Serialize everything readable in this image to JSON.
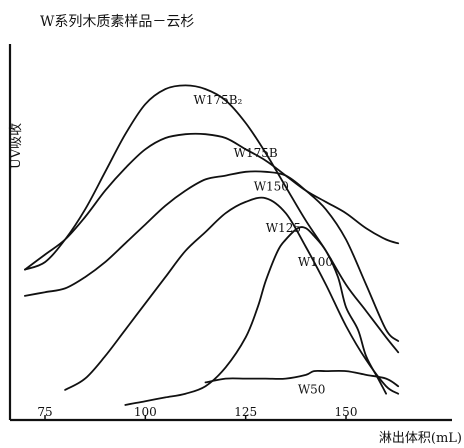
{
  "chart_data": {
    "type": "line",
    "title": "W系列木质素样品－云杉",
    "xlabel": "淋出体积(mL)",
    "ylabel": "UV吸收",
    "xlim": [
      70,
      165
    ],
    "ylim": [
      0,
      1
    ],
    "x_ticks": [
      75,
      100,
      125,
      150
    ],
    "grid": false,
    "series": [
      {
        "name": "W175B₂",
        "label": "W175B₂",
        "points": [
          [
            70,
            0.4
          ],
          [
            75,
            0.42
          ],
          [
            80,
            0.48
          ],
          [
            85,
            0.56
          ],
          [
            90,
            0.66
          ],
          [
            95,
            0.76
          ],
          [
            100,
            0.84
          ],
          [
            105,
            0.88
          ],
          [
            110,
            0.89
          ],
          [
            115,
            0.88
          ],
          [
            120,
            0.85
          ],
          [
            125,
            0.79
          ],
          [
            130,
            0.71
          ],
          [
            135,
            0.62
          ],
          [
            140,
            0.53
          ],
          [
            145,
            0.45
          ],
          [
            150,
            0.36
          ],
          [
            155,
            0.29
          ],
          [
            160,
            0.22
          ],
          [
            163,
            0.18
          ]
        ]
      },
      {
        "name": "W175B",
        "label": "W175B",
        "points": [
          [
            70,
            0.4
          ],
          [
            75,
            0.44
          ],
          [
            80,
            0.48
          ],
          [
            85,
            0.54
          ],
          [
            90,
            0.61
          ],
          [
            95,
            0.67
          ],
          [
            100,
            0.72
          ],
          [
            105,
            0.75
          ],
          [
            110,
            0.76
          ],
          [
            115,
            0.76
          ],
          [
            120,
            0.75
          ],
          [
            125,
            0.72
          ],
          [
            130,
            0.69
          ],
          [
            135,
            0.65
          ],
          [
            140,
            0.61
          ],
          [
            145,
            0.58
          ],
          [
            150,
            0.55
          ],
          [
            155,
            0.51
          ],
          [
            160,
            0.48
          ],
          [
            163,
            0.47
          ]
        ]
      },
      {
        "name": "W150",
        "label": "W150",
        "points": [
          [
            70,
            0.33
          ],
          [
            75,
            0.34
          ],
          [
            80,
            0.35
          ],
          [
            85,
            0.38
          ],
          [
            90,
            0.42
          ],
          [
            95,
            0.47
          ],
          [
            100,
            0.52
          ],
          [
            105,
            0.57
          ],
          [
            110,
            0.61
          ],
          [
            115,
            0.64
          ],
          [
            120,
            0.65
          ],
          [
            125,
            0.66
          ],
          [
            130,
            0.66
          ],
          [
            135,
            0.65
          ],
          [
            140,
            0.61
          ],
          [
            145,
            0.56
          ],
          [
            150,
            0.48
          ],
          [
            155,
            0.36
          ],
          [
            160,
            0.24
          ],
          [
            163,
            0.21
          ]
        ]
      },
      {
        "name": "W125",
        "label": "W125",
        "points": [
          [
            80,
            0.08
          ],
          [
            85,
            0.11
          ],
          [
            90,
            0.17
          ],
          [
            95,
            0.24
          ],
          [
            100,
            0.31
          ],
          [
            105,
            0.38
          ],
          [
            110,
            0.45
          ],
          [
            115,
            0.5
          ],
          [
            120,
            0.55
          ],
          [
            125,
            0.58
          ],
          [
            130,
            0.59
          ],
          [
            135,
            0.55
          ],
          [
            140,
            0.46
          ],
          [
            145,
            0.36
          ],
          [
            150,
            0.25
          ],
          [
            155,
            0.16
          ],
          [
            160,
            0.09
          ],
          [
            163,
            0.07
          ]
        ]
      },
      {
        "name": "W100",
        "label": "W100",
        "points": [
          [
            95,
            0.04
          ],
          [
            100,
            0.05
          ],
          [
            105,
            0.06
          ],
          [
            110,
            0.07
          ],
          [
            115,
            0.09
          ],
          [
            120,
            0.14
          ],
          [
            125,
            0.22
          ],
          [
            128,
            0.3
          ],
          [
            130,
            0.37
          ],
          [
            133,
            0.45
          ],
          [
            135,
            0.48
          ],
          [
            138,
            0.51
          ],
          [
            140,
            0.51
          ],
          [
            142,
            0.49
          ],
          [
            145,
            0.45
          ],
          [
            148,
            0.38
          ],
          [
            150,
            0.3
          ],
          [
            153,
            0.24
          ],
          [
            155,
            0.17
          ],
          [
            158,
            0.11
          ],
          [
            160,
            0.07
          ]
        ]
      },
      {
        "name": "W50",
        "label": "W50",
        "points": [
          [
            115,
            0.1
          ],
          [
            120,
            0.11
          ],
          [
            125,
            0.11
          ],
          [
            130,
            0.11
          ],
          [
            135,
            0.11
          ],
          [
            140,
            0.12
          ],
          [
            142,
            0.13
          ],
          [
            145,
            0.13
          ],
          [
            150,
            0.13
          ],
          [
            155,
            0.12
          ],
          [
            160,
            0.11
          ],
          [
            163,
            0.09
          ]
        ]
      }
    ]
  }
}
